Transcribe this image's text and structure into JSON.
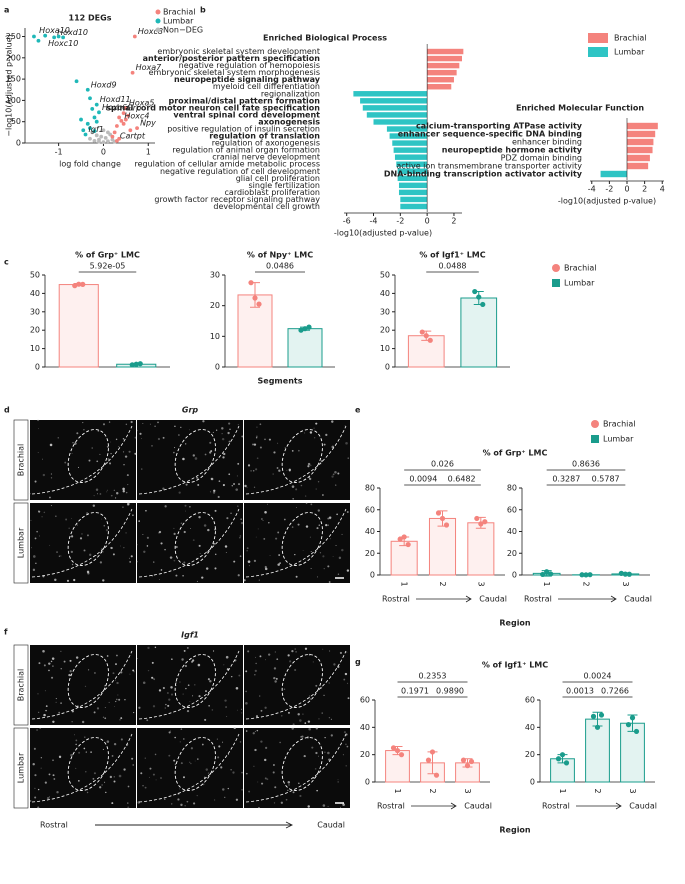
{
  "panel_labels": [
    "a",
    "b",
    "c",
    "d",
    "e",
    "f",
    "g"
  ],
  "micrographs": [
    {
      "title": "Grp",
      "rows": [
        "Brachial",
        "Lumbar"
      ]
    },
    {
      "title": "Igf1",
      "rows": [
        "Brachial",
        "Lumbar"
      ],
      "axis_ends": [
        "Rostral",
        "Caudal"
      ]
    }
  ],
  "chart_data": [
    {
      "type": "scatter",
      "title": "112 DEGs",
      "xlabel": "log fold change",
      "ylabel": "−log10(Adjusted p-value)",
      "xlim": [
        -1.75,
        1.15
      ],
      "ylim": [
        0,
        270
      ],
      "xticks": [
        -1,
        0,
        1
      ],
      "yticks": [
        0,
        50,
        100,
        150,
        200,
        250
      ],
      "legend": "upper right",
      "series": [
        {
          "name": "Brachial",
          "color": "#f4837d",
          "x": [
            0.7,
            0.65,
            0.5,
            0.45,
            0.4,
            0.75,
            0.3,
            0.35,
            0.55,
            0.3,
            0.45,
            0.6,
            0.25,
            0.2,
            0.35,
            0.5
          ],
          "y": [
            250,
            165,
            82,
            70,
            52,
            35,
            5,
            60,
            64,
            40,
            45,
            30,
            25,
            15,
            10,
            55
          ],
          "labels": [
            "Hoxc8",
            "Hoxa7",
            "Hoxa5",
            "Grp",
            "Hoxc4",
            "Npy",
            "Cartpt",
            null,
            null,
            null,
            null,
            null,
            null,
            null,
            null,
            null
          ]
        },
        {
          "name": "Lumbar",
          "color": "#1fb8b8",
          "x": [
            -1.3,
            -1.1,
            -0.9,
            -1.55,
            -1.45,
            -1.0,
            -0.35,
            -0.15,
            -0.1,
            -0.4,
            -0.6,
            -0.3,
            -0.25,
            -0.2,
            -0.5,
            -0.35,
            -0.3,
            -0.45,
            -0.2,
            -0.15
          ],
          "y": [
            252,
            248,
            248,
            250,
            240,
            250,
            125,
            90,
            72,
            20,
            145,
            105,
            80,
            60,
            55,
            45,
            35,
            30,
            28,
            50
          ],
          "labels": [
            "Hoxa10",
            "Hoxc10",
            "Hoxd10",
            null,
            null,
            null,
            "Hoxd9",
            "Hoxd11",
            "Hoxc6",
            "Igf1",
            null,
            null,
            null,
            null,
            null,
            null,
            null,
            null,
            null,
            null
          ]
        },
        {
          "name": "Non−DEG",
          "color": "#bbbbbb",
          "x": [
            -0.3,
            -0.2,
            -0.1,
            0,
            0.1,
            0.2,
            -0.05,
            0.05,
            0.15,
            -0.15,
            -0.25,
            0.1,
            0,
            -0.1,
            0.25
          ],
          "y": [
            10,
            5,
            3,
            2,
            4,
            8,
            15,
            12,
            20,
            18,
            25,
            25,
            30,
            8,
            3
          ],
          "labels": [
            null,
            null,
            null,
            null,
            null,
            null,
            null,
            null,
            null,
            null,
            null,
            null,
            null,
            null,
            null
          ]
        }
      ]
    },
    {
      "type": "barh",
      "title": "Enriched Biological Process",
      "xlabel": "-log10(adjusted p-value)",
      "xlim": [
        -6.2,
        2.6
      ],
      "xticks": [
        -6,
        -4,
        -2,
        0,
        2
      ],
      "positive_color": "#f4837d",
      "negative_color": "#2ec4c4",
      "legend": [
        {
          "name": "Brachial",
          "color": "#f4837d"
        },
        {
          "name": "Lumbar",
          "color": "#2ec4c4"
        }
      ],
      "categories": [
        "embryonic skeletal system development",
        "anterior/posterior pattern specification",
        "negative regulation of hemopoiesis",
        "embryonic skeletal system morphogenesis",
        "neuropeptide signaling pathway",
        "myeloid cell differentiation",
        "regionalization",
        "proximal/distal pattern formation",
        "spinal cord motor neuron cell fate specification",
        "ventral spinal cord development",
        "axonogenesis",
        "positive regulation of insulin secretion",
        "regulation of translation",
        "regulation of axonogenesis",
        "regulation of animal organ formation",
        "cranial nerve development",
        "regulation of cellular amide metabolic process",
        "negative regulation of cell development",
        "glial cell proliferation",
        "single fertilization",
        "cardioblast proliferation",
        "growth factor receptor signaling pathway",
        "developmental cell growth"
      ],
      "values": [
        2.7,
        2.6,
        2.4,
        2.2,
        2.0,
        1.8,
        -5.5,
        -5.0,
        -4.8,
        -4.5,
        -4.0,
        -3.0,
        -2.8,
        -2.6,
        -2.5,
        -2.4,
        -2.3,
        -2.2,
        -2.2,
        -2.1,
        -2.1,
        -2.0,
        -2.0
      ],
      "bold": [
        false,
        true,
        false,
        false,
        true,
        false,
        false,
        true,
        true,
        true,
        true,
        false,
        true,
        false,
        false,
        false,
        false,
        false,
        false,
        false,
        false,
        false,
        false
      ]
    },
    {
      "type": "barh",
      "title": "Enriched Molecular Function",
      "xlabel": "-log10(adjusted p-value)",
      "xlim": [
        -4.2,
        4.2
      ],
      "xticks": [
        -4,
        -2,
        0,
        2,
        4
      ],
      "positive_color": "#f4837d",
      "negative_color": "#2ec4c4",
      "categories": [
        "calcium-transporting ATPase activity",
        "enhancer sequence-specific DNA binding",
        "enhancer binding",
        "neuropeptide hormone activity",
        "PDZ domain binding",
        "active ion transmembrane transporter activity",
        "DNA-binding transcription activator activity"
      ],
      "values": [
        3.5,
        3.2,
        3.0,
        2.9,
        2.6,
        2.4,
        -3.0
      ],
      "bold": [
        true,
        true,
        false,
        true,
        false,
        false,
        true
      ]
    },
    {
      "type": "bar_dots",
      "title": "% of Grp⁺ LMC",
      "ylim": [
        0,
        50
      ],
      "yticks": [
        0,
        10,
        20,
        30,
        40,
        50
      ],
      "legend": [
        {
          "name": "Brachial",
          "color": "#f4837d"
        },
        {
          "name": "Lumbar",
          "color": "#1a9c8c"
        }
      ],
      "bars": [
        {
          "color": "#f4837d",
          "value": 44.8,
          "error": 0.6,
          "points": [
            44.2,
            45.0,
            44.9
          ]
        },
        {
          "color": "#1a9c8c",
          "value": 1.5,
          "error": 0.4,
          "points": [
            1.2,
            1.5,
            1.8
          ]
        }
      ],
      "comparisons": [
        {
          "between": [
            0,
            1
          ],
          "p": "5.92e-05"
        }
      ]
    },
    {
      "type": "bar_dots",
      "title": "% of Npy⁺ LMC",
      "xlabel": "Segments",
      "ylim": [
        0,
        30
      ],
      "yticks": [
        0,
        10,
        20,
        30
      ],
      "bars": [
        {
          "color": "#f4837d",
          "value": 23.5,
          "error": 4,
          "points": [
            27.5,
            22.5,
            20.5
          ]
        },
        {
          "color": "#1a9c8c",
          "value": 12.5,
          "error": 0.5,
          "points": [
            12,
            12.5,
            13
          ]
        }
      ],
      "comparisons": [
        {
          "between": [
            0,
            1
          ],
          "p": "0.0486"
        }
      ]
    },
    {
      "type": "bar_dots",
      "title": "% of Igf1⁺ LMC",
      "ylim": [
        0,
        50
      ],
      "yticks": [
        0,
        10,
        20,
        30,
        40,
        50
      ],
      "bars": [
        {
          "color": "#f4837d",
          "value": 17,
          "error": 2.5,
          "points": [
            19,
            17,
            14.5
          ]
        },
        {
          "color": "#1a9c8c",
          "value": 37.5,
          "error": 3.5,
          "points": [
            41,
            38,
            34
          ]
        }
      ],
      "comparisons": [
        {
          "between": [
            0,
            1
          ],
          "p": "0.0488"
        }
      ]
    },
    {
      "type": "bar_dots",
      "title": "% of Grp⁺ LMC",
      "xlabel": "Region",
      "ylim": [
        0,
        80
      ],
      "yticks": [
        0,
        20,
        40,
        60,
        80
      ],
      "legend": [
        {
          "name": "Brachial",
          "color": "#f4837d"
        },
        {
          "name": "Lumbar",
          "color": "#1a9c8c"
        }
      ],
      "categories": [
        "1",
        "2",
        "3"
      ],
      "axis_ends": [
        "Rostral",
        "Caudal"
      ],
      "bars": [
        {
          "color": "#f4837d",
          "value": 31,
          "error": 4,
          "points": [
            33,
            35,
            28
          ]
        },
        {
          "color": "#f4837d",
          "value": 52,
          "error": 7,
          "points": [
            57,
            52,
            46
          ]
        },
        {
          "color": "#f4837d",
          "value": 48,
          "error": 5,
          "points": [
            52,
            47,
            49
          ]
        }
      ],
      "comparisons": [
        {
          "between": [
            0,
            1
          ],
          "p": "0.0094"
        },
        {
          "between": [
            1,
            2
          ],
          "p": "0.6482"
        },
        {
          "between": [
            0,
            2
          ],
          "p": "0.026"
        }
      ]
    },
    {
      "type": "bar_dots",
      "ylim": [
        0,
        80
      ],
      "yticks": [
        0,
        20,
        40,
        60,
        80
      ],
      "categories": [
        "1",
        "2",
        "3"
      ],
      "axis_ends": [
        "Rostral",
        "Caudal"
      ],
      "bars": [
        {
          "color": "#1a9c8c",
          "value": 1.5,
          "error": 2.5,
          "points": [
            0.5,
            3,
            1
          ]
        },
        {
          "color": "#1a9c8c",
          "value": 0.2,
          "error": 0.3,
          "points": [
            0.2,
            0.1,
            0.3
          ]
        },
        {
          "color": "#1a9c8c",
          "value": 1.0,
          "error": 1.0,
          "points": [
            1.5,
            0.8,
            0.7
          ]
        }
      ],
      "comparisons": [
        {
          "between": [
            0,
            1
          ],
          "p": "0.3287"
        },
        {
          "between": [
            1,
            2
          ],
          "p": "0.5787"
        },
        {
          "between": [
            0,
            2
          ],
          "p": "0.8636"
        }
      ]
    },
    {
      "type": "bar_dots",
      "title": "% of Igf1⁺ LMC",
      "xlabel": "Region",
      "ylim": [
        0,
        60
      ],
      "yticks": [
        0,
        20,
        40,
        60
      ],
      "categories": [
        "1",
        "2",
        "3"
      ],
      "axis_ends": [
        "Rostral",
        "Caudal"
      ],
      "bars": [
        {
          "color": "#f4837d",
          "value": 23,
          "error": 3,
          "points": [
            25,
            23,
            20
          ]
        },
        {
          "color": "#f4837d",
          "value": 14,
          "error": 8,
          "points": [
            16,
            22,
            5
          ]
        },
        {
          "color": "#f4837d",
          "value": 14,
          "error": 3,
          "points": [
            16,
            12,
            15
          ]
        }
      ],
      "comparisons": [
        {
          "between": [
            0,
            1
          ],
          "p": "0.1971"
        },
        {
          "between": [
            1,
            2
          ],
          "p": "0.9890"
        },
        {
          "between": [
            0,
            2
          ],
          "p": "0.2353"
        }
      ]
    },
    {
      "type": "bar_dots",
      "ylim": [
        0,
        60
      ],
      "yticks": [
        0,
        20,
        40,
        60
      ],
      "categories": [
        "1",
        "2",
        "3"
      ],
      "axis_ends": [
        "Rostral",
        "Caudal"
      ],
      "bars": [
        {
          "color": "#1a9c8c",
          "value": 17,
          "error": 3,
          "points": [
            17,
            20,
            14
          ]
        },
        {
          "color": "#1a9c8c",
          "value": 46,
          "error": 5,
          "points": [
            48,
            40,
            49
          ]
        },
        {
          "color": "#1a9c8c",
          "value": 43,
          "error": 6,
          "points": [
            42,
            47,
            37
          ]
        }
      ],
      "comparisons": [
        {
          "between": [
            0,
            1
          ],
          "p": "0.0013"
        },
        {
          "between": [
            1,
            2
          ],
          "p": "0.7266"
        },
        {
          "between": [
            0,
            2
          ],
          "p": "0.0024"
        }
      ]
    }
  ]
}
